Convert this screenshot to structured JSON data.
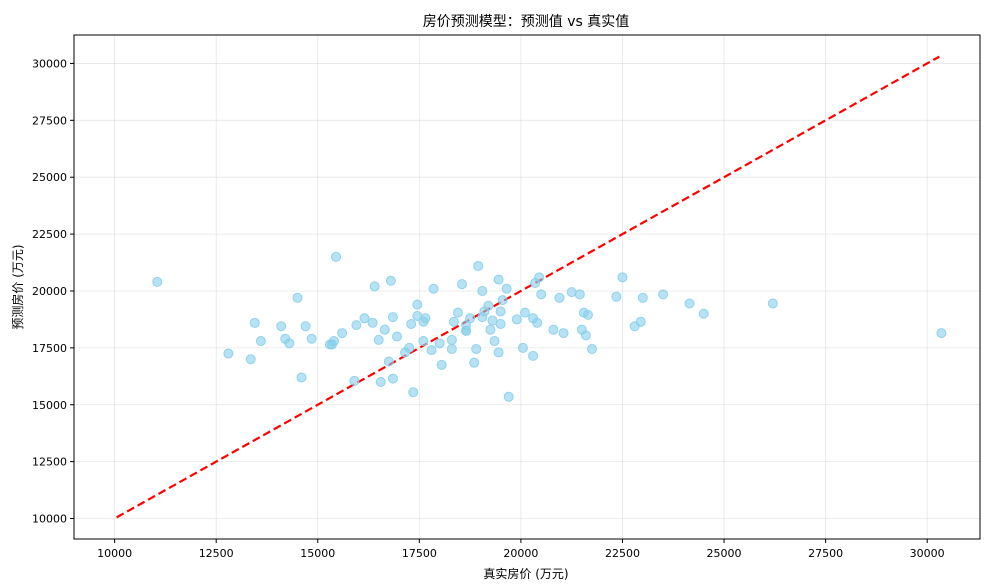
{
  "chart_data": {
    "type": "scatter",
    "title": "房价预测模型：预测值 vs 真实值",
    "xlabel": "真实房价 (万元)",
    "ylabel": "预测房价 (万元)",
    "xlim": [
      9000,
      31300
    ],
    "ylim": [
      9100,
      31250
    ],
    "x_ticks": [
      10000,
      12500,
      15000,
      17500,
      20000,
      22500,
      25000,
      27500,
      30000
    ],
    "y_ticks": [
      10000,
      12500,
      15000,
      17500,
      20000,
      22500,
      25000,
      27500,
      30000
    ],
    "grid": true,
    "colors": {
      "points": "#87ceeb",
      "reference_line": "#ff0000"
    },
    "reference_line": {
      "style": "dashed",
      "from": [
        10050,
        10050
      ],
      "to": [
        30300,
        30300
      ]
    },
    "points": [
      [
        11050,
        20400
      ],
      [
        12800,
        17250
      ],
      [
        13350,
        17000
      ],
      [
        13450,
        18600
      ],
      [
        13600,
        17800
      ],
      [
        14100,
        18450
      ],
      [
        14200,
        17900
      ],
      [
        14300,
        17700
      ],
      [
        14500,
        19700
      ],
      [
        14600,
        16200
      ],
      [
        14700,
        18450
      ],
      [
        14850,
        17900
      ],
      [
        15300,
        17650
      ],
      [
        15350,
        17650
      ],
      [
        15400,
        17800
      ],
      [
        15450,
        21500
      ],
      [
        15600,
        18150
      ],
      [
        15900,
        16050
      ],
      [
        15950,
        18500
      ],
      [
        16150,
        18800
      ],
      [
        16350,
        18600
      ],
      [
        16400,
        20200
      ],
      [
        16500,
        17850
      ],
      [
        16550,
        16000
      ],
      [
        16650,
        18300
      ],
      [
        16750,
        16900
      ],
      [
        16800,
        20450
      ],
      [
        16850,
        18850
      ],
      [
        16850,
        16150
      ],
      [
        16950,
        18000
      ],
      [
        17150,
        17300
      ],
      [
        17250,
        17500
      ],
      [
        17300,
        18550
      ],
      [
        17350,
        15550
      ],
      [
        17450,
        19400
      ],
      [
        17450,
        18900
      ],
      [
        17600,
        17800
      ],
      [
        17600,
        18650
      ],
      [
        17650,
        18800
      ],
      [
        17800,
        17400
      ],
      [
        17850,
        20100
      ],
      [
        18000,
        17700
      ],
      [
        18050,
        16750
      ],
      [
        18300,
        17450
      ],
      [
        18300,
        17850
      ],
      [
        18350,
        18650
      ],
      [
        18450,
        19050
      ],
      [
        18550,
        20300
      ],
      [
        18650,
        18250
      ],
      [
        18650,
        18250
      ],
      [
        18650,
        18500
      ],
      [
        18750,
        18800
      ],
      [
        18850,
        16850
      ],
      [
        18900,
        17450
      ],
      [
        18950,
        21100
      ],
      [
        19050,
        18850
      ],
      [
        19050,
        20000
      ],
      [
        19100,
        19100
      ],
      [
        19200,
        19350
      ],
      [
        19250,
        18300
      ],
      [
        19300,
        18700
      ],
      [
        19350,
        17800
      ],
      [
        19450,
        17300
      ],
      [
        19450,
        20500
      ],
      [
        19500,
        19100
      ],
      [
        19500,
        18550
      ],
      [
        19550,
        19600
      ],
      [
        19650,
        20100
      ],
      [
        19700,
        15350
      ],
      [
        19900,
        18750
      ],
      [
        20050,
        17500
      ],
      [
        20100,
        19050
      ],
      [
        20300,
        17150
      ],
      [
        20300,
        18800
      ],
      [
        20350,
        20350
      ],
      [
        20400,
        18600
      ],
      [
        20450,
        20600
      ],
      [
        20500,
        19850
      ],
      [
        20800,
        18300
      ],
      [
        20950,
        19700
      ],
      [
        21050,
        18150
      ],
      [
        21250,
        19950
      ],
      [
        21450,
        19850
      ],
      [
        21500,
        18300
      ],
      [
        21550,
        19050
      ],
      [
        21600,
        18050
      ],
      [
        21650,
        18950
      ],
      [
        21750,
        17450
      ],
      [
        22350,
        19750
      ],
      [
        22500,
        20600
      ],
      [
        22800,
        18450
      ],
      [
        22950,
        18650
      ],
      [
        23000,
        19700
      ],
      [
        23500,
        19850
      ],
      [
        24150,
        19450
      ],
      [
        24500,
        19000
      ],
      [
        26200,
        19450
      ],
      [
        30350,
        18150
      ]
    ]
  }
}
